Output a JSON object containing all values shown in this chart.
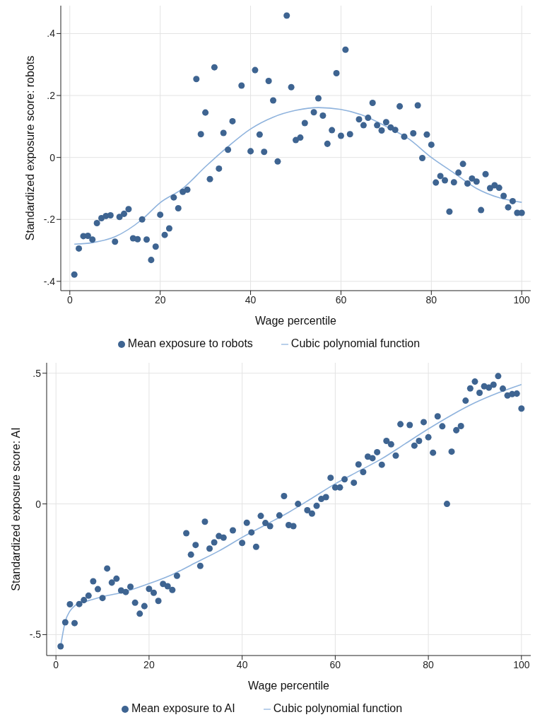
{
  "chart_data": [
    {
      "type": "scatter",
      "xlabel": "Wage percentile",
      "ylabel": "Standardized exposure score: robots",
      "xlim": [
        -2,
        102
      ],
      "xticks": [
        0,
        20,
        40,
        60,
        80,
        100
      ],
      "ylim": [
        -0.43,
        0.49
      ],
      "yticks": [
        {
          "value": -0.4,
          "label": "-.4"
        },
        {
          "value": -0.2,
          "label": "-.2"
        },
        0,
        {
          "value": 0.2,
          "label": ".2"
        },
        {
          "value": 0.4,
          "label": ".4"
        }
      ],
      "grid": true,
      "legend": "bottom",
      "marker": "circle",
      "series": [
        {
          "name": "Mean exposure to robots",
          "type": "scatter",
          "color": "#3e6491",
          "x": [
            1,
            2,
            3,
            4,
            5,
            6,
            7,
            8,
            9,
            10,
            11,
            12,
            13,
            14,
            15,
            16,
            17,
            18,
            19,
            20,
            21,
            22,
            23,
            24,
            25,
            26,
            28,
            29,
            30,
            31,
            32,
            33,
            34,
            35,
            36,
            38,
            40,
            41,
            42,
            43,
            44,
            45,
            46,
            48,
            49,
            50,
            51,
            52,
            54,
            55,
            56,
            57,
            58,
            59,
            60,
            61,
            62,
            64,
            65,
            66,
            67,
            68,
            69,
            70,
            71,
            72,
            73,
            74,
            76,
            77,
            78,
            79,
            80,
            81,
            82,
            83,
            84,
            85,
            86,
            87,
            88,
            89,
            90,
            91,
            92,
            93,
            94,
            95,
            96,
            97,
            98,
            99,
            100
          ],
          "values": [
            -0.378,
            -0.294,
            -0.254,
            -0.253,
            -0.265,
            -0.212,
            -0.196,
            -0.189,
            -0.187,
            -0.272,
            -0.192,
            -0.182,
            -0.167,
            -0.261,
            -0.264,
            -0.2,
            -0.265,
            -0.331,
            -0.288,
            -0.185,
            -0.25,
            -0.229,
            -0.129,
            -0.164,
            -0.111,
            -0.104,
            0.253,
            0.075,
            0.145,
            -0.07,
            0.291,
            -0.036,
            0.079,
            0.025,
            0.117,
            0.232,
            0.02,
            0.282,
            0.074,
            0.018,
            0.247,
            0.184,
            -0.013,
            0.458,
            0.227,
            0.056,
            0.064,
            0.111,
            0.146,
            0.191,
            0.135,
            0.044,
            0.088,
            0.272,
            0.07,
            0.348,
            0.075,
            0.123,
            0.104,
            0.128,
            0.176,
            0.104,
            0.087,
            0.114,
            0.097,
            0.089,
            0.165,
            0.067,
            0.078,
            0.168,
            -0.002,
            0.074,
            0.041,
            -0.081,
            -0.06,
            -0.074,
            -0.175,
            -0.08,
            -0.049,
            -0.021,
            -0.084,
            -0.068,
            -0.078,
            -0.17,
            -0.054,
            -0.099,
            -0.09,
            -0.098,
            -0.124,
            -0.161,
            -0.141,
            -0.179,
            -0.179
          ]
        },
        {
          "name": "Cubic polynomial function",
          "type": "line",
          "color": "#8fb3dd",
          "marker": "none",
          "x": [
            1,
            5,
            10,
            16,
            20,
            25,
            30,
            35,
            40,
            45,
            50,
            55,
            60,
            65,
            70,
            75,
            80,
            85,
            90,
            95,
            100
          ],
          "values": [
            -0.28,
            -0.275,
            -0.256,
            -0.2,
            -0.146,
            -0.1,
            -0.03,
            0.035,
            0.092,
            0.13,
            0.152,
            0.161,
            0.155,
            0.135,
            0.1,
            0.06,
            0.0,
            -0.05,
            -0.1,
            -0.13,
            -0.145
          ]
        }
      ]
    },
    {
      "type": "scatter",
      "xlabel": "Wage percentile",
      "ylabel": "Standardized exposure score: AI",
      "xlim": [
        -2,
        102
      ],
      "xticks": [
        0,
        20,
        40,
        60,
        80,
        100
      ],
      "ylim": [
        -0.58,
        0.54
      ],
      "yticks": [
        {
          "value": -0.5,
          "label": "-.5"
        },
        0,
        {
          "value": 0.5,
          "label": ".5"
        }
      ],
      "grid": true,
      "legend": "bottom",
      "marker": "circle",
      "series": [
        {
          "name": "Mean exposure to AI",
          "type": "scatter",
          "color": "#3e6491",
          "x": [
            1,
            2,
            3,
            4,
            5,
            6,
            7,
            8,
            9,
            10,
            11,
            12,
            13,
            14,
            15,
            16,
            17,
            18,
            19,
            20,
            21,
            22,
            23,
            24,
            25,
            26,
            28,
            29,
            30,
            31,
            32,
            33,
            34,
            35,
            36,
            38,
            40,
            41,
            42,
            43,
            44,
            45,
            46,
            48,
            49,
            50,
            51,
            52,
            54,
            55,
            56,
            57,
            58,
            59,
            60,
            61,
            62,
            64,
            65,
            66,
            67,
            68,
            69,
            70,
            71,
            72,
            73,
            74,
            76,
            77,
            78,
            79,
            80,
            81,
            82,
            83,
            84,
            85,
            86,
            87,
            88,
            89,
            90,
            91,
            92,
            93,
            94,
            95,
            96,
            97,
            98,
            99,
            100
          ],
          "values": [
            -0.545,
            -0.453,
            -0.384,
            -0.456,
            -0.383,
            -0.368,
            -0.351,
            -0.296,
            -0.326,
            -0.36,
            -0.247,
            -0.301,
            -0.286,
            -0.331,
            -0.337,
            -0.317,
            -0.378,
            -0.42,
            -0.391,
            -0.325,
            -0.34,
            -0.371,
            -0.306,
            -0.315,
            -0.329,
            -0.275,
            -0.112,
            -0.194,
            -0.157,
            -0.237,
            -0.068,
            -0.171,
            -0.147,
            -0.123,
            -0.129,
            -0.101,
            -0.149,
            -0.072,
            -0.109,
            -0.164,
            -0.046,
            -0.073,
            -0.085,
            -0.044,
            0.03,
            -0.081,
            -0.085,
            0.0,
            -0.024,
            -0.037,
            -0.007,
            0.019,
            0.026,
            0.1,
            0.063,
            0.063,
            0.094,
            0.081,
            0.151,
            0.122,
            0.181,
            0.175,
            0.198,
            0.15,
            0.241,
            0.228,
            0.185,
            0.305,
            0.302,
            0.223,
            0.241,
            0.313,
            0.255,
            0.196,
            0.335,
            0.297,
            0.0,
            0.2,
            0.282,
            0.298,
            0.395,
            0.442,
            0.468,
            0.425,
            0.45,
            0.445,
            0.456,
            0.489,
            0.441,
            0.415,
            0.42,
            0.422,
            0.365
          ]
        },
        {
          "name": "Cubic polynomial function",
          "type": "line",
          "color": "#8fb3dd",
          "marker": "none",
          "x": [
            1,
            2,
            3,
            4,
            5,
            7,
            10,
            15,
            20,
            25,
            30,
            35,
            40,
            45,
            50,
            55,
            60,
            65,
            70,
            75,
            80,
            85,
            90,
            95,
            100
          ],
          "values": [
            -0.545,
            -0.45,
            -0.41,
            -0.39,
            -0.38,
            -0.37,
            -0.355,
            -0.335,
            -0.305,
            -0.27,
            -0.225,
            -0.18,
            -0.128,
            -0.08,
            -0.032,
            0.022,
            0.077,
            0.125,
            0.173,
            0.23,
            0.287,
            0.34,
            0.387,
            0.425,
            0.457
          ]
        }
      ]
    }
  ]
}
